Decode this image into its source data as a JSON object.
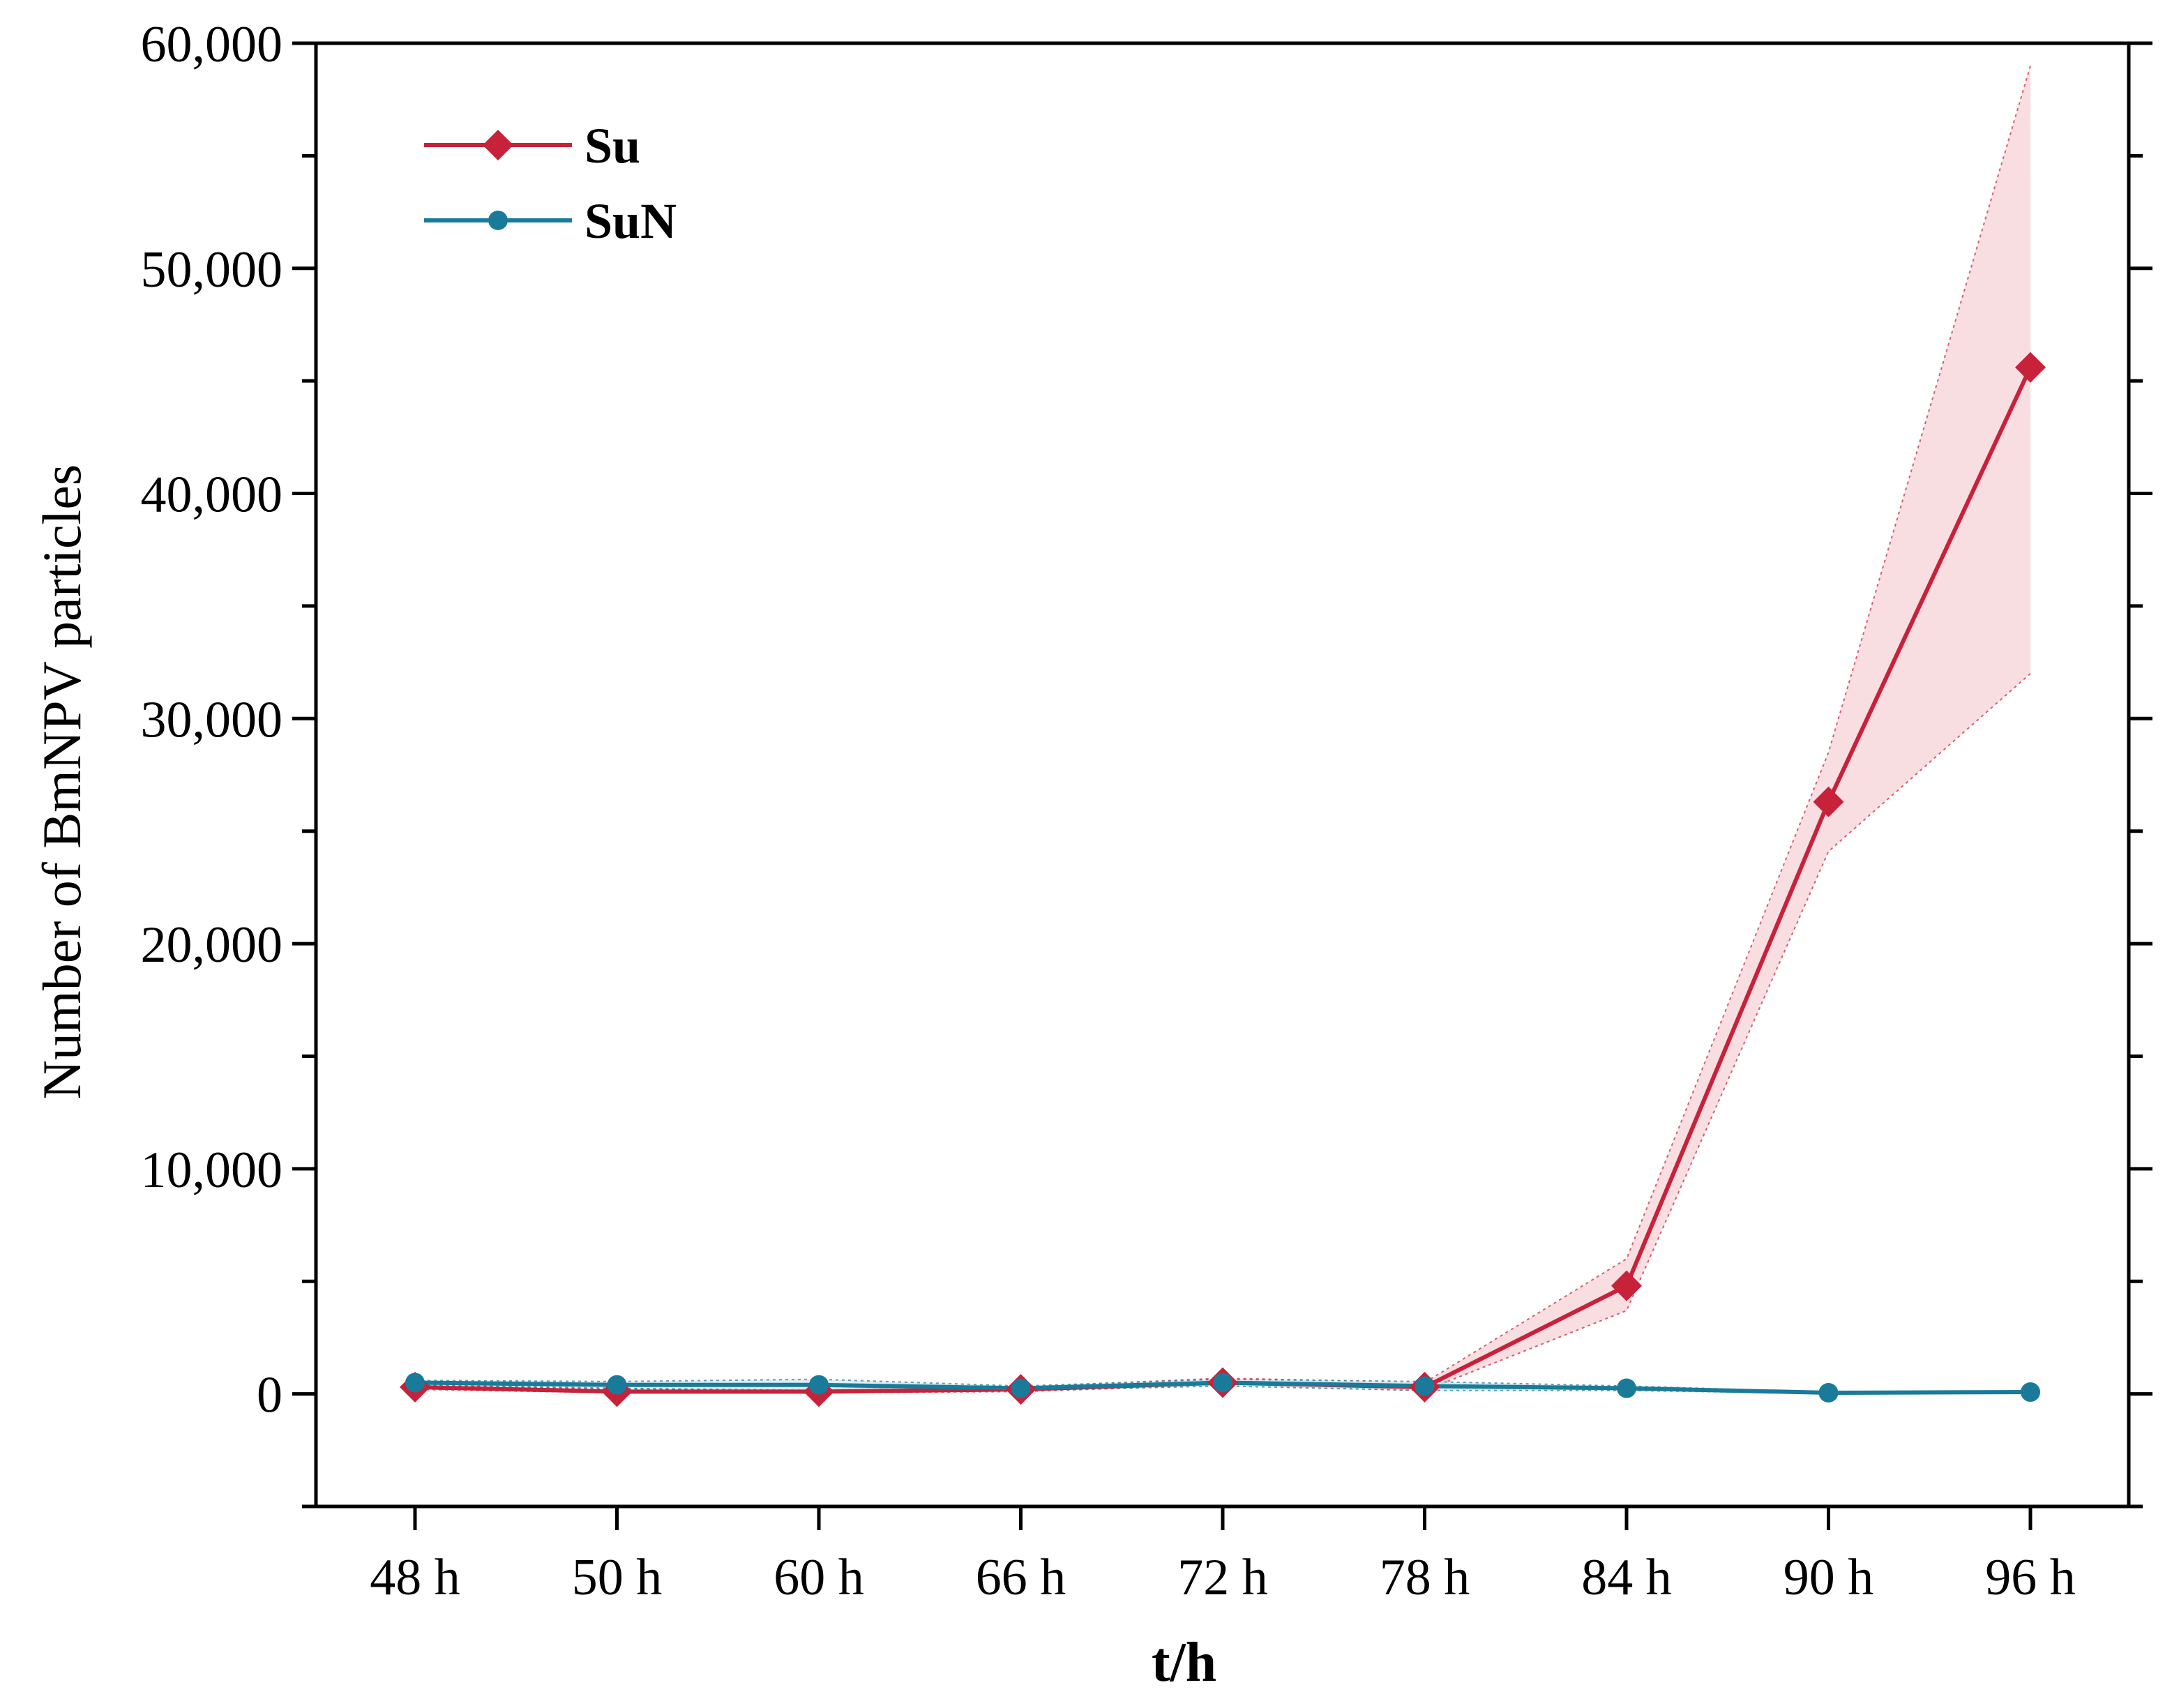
{
  "chart_data": {
    "type": "line",
    "title": "",
    "xlabel": "t/h",
    "ylabel": "Number of BmNPV particles",
    "categories": [
      "48 h",
      "50 h",
      "60 h",
      "66 h",
      "72 h",
      "78 h",
      "84 h",
      "90 h",
      "96 h"
    ],
    "ylim": [
      -5000,
      60000
    ],
    "yticks": [
      0,
      10000,
      20000,
      30000,
      40000,
      50000,
      60000
    ],
    "ytick_labels": [
      "0",
      "10,000",
      "20,000",
      "30,000",
      "40,000",
      "50,000",
      "60,000"
    ],
    "legend_position": "top-left",
    "series": [
      {
        "name": "Su",
        "color": "#c8213a",
        "band_color": "#f7d7dc",
        "marker": "diamond",
        "values": [
          300,
          100,
          100,
          200,
          500,
          300,
          4800,
          26300,
          45600
        ],
        "lower": [
          200,
          50,
          50,
          100,
          400,
          150,
          3700,
          24100,
          32000
        ],
        "upper": [
          400,
          200,
          200,
          300,
          700,
          500,
          6000,
          28500,
          59000
        ]
      },
      {
        "name": "SuN",
        "color": "#1a7a99",
        "band_color": "#d8eaf0",
        "marker": "circle",
        "values": [
          500,
          400,
          400,
          250,
          500,
          350,
          250,
          50,
          80
        ],
        "lower": [
          400,
          250,
          150,
          150,
          350,
          150,
          150,
          20,
          40
        ],
        "upper": [
          600,
          550,
          650,
          350,
          650,
          550,
          350,
          80,
          120
        ]
      }
    ]
  }
}
